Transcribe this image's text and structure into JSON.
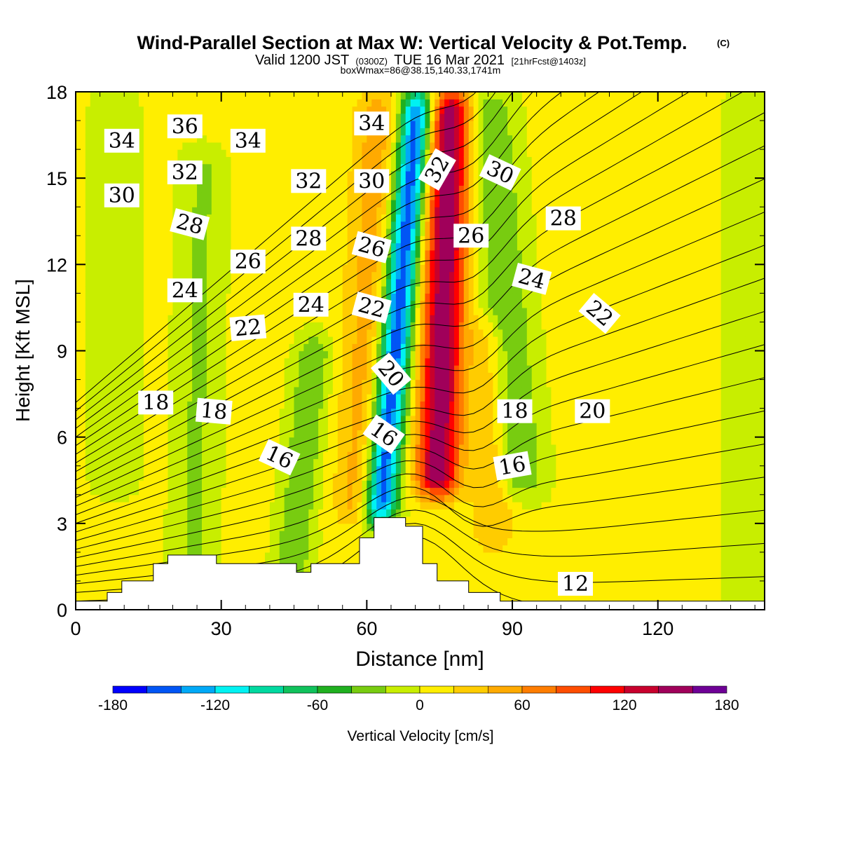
{
  "header": {
    "title_main": "Wind-Parallel Section at Max W: Vertical Velocity & Pot.Temp.",
    "title_mark": "(C)",
    "valid_a": "Valid 1200 JST",
    "valid_b": "(0300Z)",
    "valid_c": "TUE 16 Mar 2021",
    "valid_d": "[21hrFcst@1403z]",
    "box_info": "boxWmax=86@38.15,140.33,1741m"
  },
  "chart_data": {
    "type": "heatmap",
    "title": "Wind-Parallel Section at Max W: Vertical Velocity & Pot.Temp.",
    "xlabel": "Distance [nm]",
    "ylabel": "Height [Kft MSL]",
    "xlim": [
      0,
      142
    ],
    "ylim": [
      0,
      18
    ],
    "x_ticks": [
      0,
      30,
      60,
      90,
      120
    ],
    "y_ticks": [
      0,
      3,
      6,
      9,
      12,
      15,
      18
    ],
    "grid": false,
    "colorbar": {
      "label": "Vertical Velocity [cm/s]",
      "placement": "bottom",
      "bounds": [
        -180,
        -160,
        -140,
        -120,
        -100,
        -80,
        -60,
        -40,
        -20,
        0,
        20,
        40,
        60,
        80,
        100,
        120,
        140,
        160,
        180
      ],
      "tick_labels": [
        "-180",
        "-120",
        "-60",
        "0",
        "60",
        "120",
        "180"
      ],
      "tick_values": [
        -180,
        -120,
        -60,
        0,
        60,
        120,
        180
      ],
      "colors": [
        "#0000ff",
        "#0055f5",
        "#00a9f7",
        "#00f2f2",
        "#00d9a0",
        "#10c25c",
        "#20b020",
        "#78cc10",
        "#c8ee00",
        "#ffee00",
        "#ffcc00",
        "#ffaa00",
        "#ff7d00",
        "#ff4d00",
        "#ff0000",
        "#c8002d",
        "#a0005a",
        "#6e0096"
      ]
    },
    "w_field": {
      "units": "cm/s",
      "background": 5,
      "features": [
        {
          "x": 62.5,
          "z0": 3.0,
          "z1": 18.0,
          "tilt": 0.55,
          "width": 2.4,
          "amp": -165
        },
        {
          "x": 74.5,
          "z0": 4.0,
          "z1": 18.0,
          "tilt": 0.2,
          "width": 3.2,
          "amp": 150
        },
        {
          "x": 58.0,
          "z0": 3.0,
          "z1": 18.0,
          "tilt": 0.3,
          "width": 3.5,
          "amp": 45
        },
        {
          "x": 44.0,
          "z0": 0.5,
          "z1": 9.5,
          "tilt": 0.6,
          "width": 2.6,
          "amp": -45
        },
        {
          "x": 24.0,
          "z0": 0.5,
          "z1": 16.0,
          "tilt": 0.15,
          "width": 3.2,
          "amp": -28
        },
        {
          "x": 92.0,
          "z0": 4.0,
          "z1": 18.0,
          "tilt": -0.5,
          "width": 3.5,
          "amp": -45
        },
        {
          "x": 86.0,
          "z0": 2.0,
          "z1": 10.0,
          "tilt": -0.1,
          "width": 2.8,
          "amp": 35
        },
        {
          "x": 138.0,
          "z0": 0.0,
          "z1": 18.0,
          "tilt": 0.0,
          "width": 3.0,
          "amp": -25
        },
        {
          "x": 8.0,
          "z0": 4.0,
          "z1": 18.0,
          "tilt": 0.0,
          "width": 3.5,
          "amp": -20
        }
      ]
    },
    "theta_contours": {
      "levels": [
        12,
        13,
        14,
        15,
        16,
        17,
        18,
        19,
        20,
        21,
        22,
        23,
        24,
        25,
        26,
        27,
        28,
        29,
        30,
        31,
        32,
        33,
        34,
        35,
        36
      ],
      "labels": [
        {
          "text": "36",
          "x": 22.5,
          "y": 16.8,
          "angle": 0
        },
        {
          "text": "34",
          "x": 9.5,
          "y": 16.3,
          "angle": 0
        },
        {
          "text": "34",
          "x": 35.5,
          "y": 16.3,
          "angle": 0
        },
        {
          "text": "34",
          "x": 61.0,
          "y": 16.9,
          "angle": 0
        },
        {
          "text": "32",
          "x": 22.5,
          "y": 15.2,
          "angle": 0
        },
        {
          "text": "32",
          "x": 48.0,
          "y": 14.9,
          "angle": 0
        },
        {
          "text": "32",
          "x": 74.5,
          "y": 15.3,
          "angle": -60
        },
        {
          "text": "30",
          "x": 9.5,
          "y": 14.4,
          "angle": 0
        },
        {
          "text": "30",
          "x": 61.0,
          "y": 14.9,
          "angle": 0
        },
        {
          "text": "30",
          "x": 87.5,
          "y": 15.2,
          "angle": 25
        },
        {
          "text": "28",
          "x": 23.5,
          "y": 13.4,
          "angle": 15
        },
        {
          "text": "28",
          "x": 48.0,
          "y": 12.9,
          "angle": 0
        },
        {
          "text": "28",
          "x": 100.5,
          "y": 13.6,
          "angle": 0
        },
        {
          "text": "26",
          "x": 35.5,
          "y": 12.1,
          "angle": 0
        },
        {
          "text": "26",
          "x": 61.0,
          "y": 12.6,
          "angle": 15
        },
        {
          "text": "26",
          "x": 81.5,
          "y": 13.0,
          "angle": 0
        },
        {
          "text": "24",
          "x": 22.5,
          "y": 11.1,
          "angle": 0
        },
        {
          "text": "24",
          "x": 48.5,
          "y": 10.6,
          "angle": 0
        },
        {
          "text": "24",
          "x": 94.0,
          "y": 11.5,
          "angle": 15
        },
        {
          "text": "22",
          "x": 35.5,
          "y": 9.8,
          "angle": -5
        },
        {
          "text": "22",
          "x": 61.0,
          "y": 10.5,
          "angle": 15
        },
        {
          "text": "22",
          "x": 108.0,
          "y": 10.3,
          "angle": 40
        },
        {
          "text": "20",
          "x": 65.0,
          "y": 8.2,
          "angle": 50
        },
        {
          "text": "20",
          "x": 106.5,
          "y": 6.9,
          "angle": 0
        },
        {
          "text": "18",
          "x": 16.5,
          "y": 7.2,
          "angle": 0
        },
        {
          "text": "18",
          "x": 28.5,
          "y": 6.9,
          "angle": 5
        },
        {
          "text": "18",
          "x": 90.5,
          "y": 6.9,
          "angle": 0
        },
        {
          "text": "16",
          "x": 42.0,
          "y": 5.3,
          "angle": 25
        },
        {
          "text": "16",
          "x": 63.5,
          "y": 6.1,
          "angle": 35
        },
        {
          "text": "16",
          "x": 90.0,
          "y": 5.0,
          "angle": -10
        },
        {
          "text": "12",
          "x": 103.0,
          "y": 0.9,
          "angle": 0
        }
      ]
    },
    "terrain": {
      "units": "kft",
      "profile": [
        [
          0,
          0.3
        ],
        [
          6.5,
          0.3
        ],
        [
          6.5,
          0.6
        ],
        [
          9.5,
          0.6
        ],
        [
          9.5,
          1.0
        ],
        [
          16,
          1.0
        ],
        [
          16,
          1.6
        ],
        [
          19,
          1.6
        ],
        [
          19,
          1.9
        ],
        [
          29,
          1.9
        ],
        [
          29,
          1.6
        ],
        [
          45.5,
          1.6
        ],
        [
          45.5,
          1.3
        ],
        [
          48.5,
          1.3
        ],
        [
          48.5,
          1.6
        ],
        [
          58.5,
          1.6
        ],
        [
          58.5,
          2.5
        ],
        [
          61.5,
          2.5
        ],
        [
          61.5,
          3.2
        ],
        [
          68,
          3.2
        ],
        [
          68,
          2.9
        ],
        [
          71.5,
          2.9
        ],
        [
          71.5,
          1.6
        ],
        [
          74.5,
          1.6
        ],
        [
          74.5,
          1.0
        ],
        [
          81,
          1.0
        ],
        [
          81,
          0.6
        ],
        [
          87.5,
          0.6
        ],
        [
          87.5,
          0.3
        ],
        [
          142,
          0.3
        ]
      ]
    }
  }
}
